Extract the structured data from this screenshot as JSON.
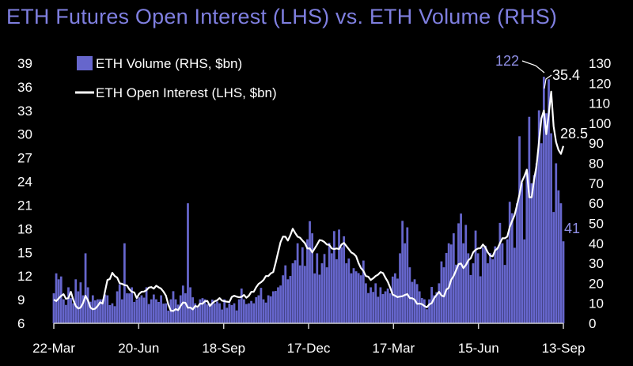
{
  "chart_data": {
    "type": "bar+line",
    "title": "ETH Futures Open Interest (LHS) vs. ETH Volume (RHS)",
    "x_tick_labels": [
      "22-Mar",
      "20-Jun",
      "18-Sep",
      "17-Dec",
      "17-Mar",
      "15-Jun",
      "13-Sep"
    ],
    "left_axis": {
      "min": 6,
      "max": 39,
      "ticks": [
        39,
        36,
        33,
        30,
        27,
        24,
        21,
        18,
        15,
        12,
        9,
        6
      ]
    },
    "right_axis": {
      "min": 0,
      "max": 130,
      "ticks": [
        130,
        120,
        110,
        100,
        90,
        80,
        70,
        60,
        50,
        40,
        30,
        20,
        10,
        0
      ]
    },
    "colors": {
      "volume": "#6666cc",
      "open_interest": "#ffffff",
      "title": "#7f7fe0",
      "annotation": "#8f8fe6"
    },
    "series": [
      {
        "name": "ETH Volume (RHS, $bn)",
        "type": "bar",
        "axis": "right",
        "anchors": [
          [
            0,
            15
          ],
          [
            2,
            22
          ],
          [
            4,
            12
          ],
          [
            6,
            18
          ],
          [
            8,
            10
          ],
          [
            9,
            22
          ],
          [
            10,
            16
          ],
          [
            12,
            14
          ],
          [
            13,
            35
          ],
          [
            14,
            18
          ],
          [
            16,
            14
          ],
          [
            18,
            12
          ],
          [
            20,
            12
          ],
          [
            22,
            14
          ],
          [
            24,
            10
          ],
          [
            26,
            16
          ],
          [
            28,
            12
          ],
          [
            29,
            40
          ],
          [
            30,
            15
          ],
          [
            32,
            18
          ],
          [
            34,
            12
          ],
          [
            36,
            14
          ],
          [
            38,
            18
          ],
          [
            40,
            12
          ],
          [
            42,
            12
          ],
          [
            44,
            14
          ],
          [
            46,
            10
          ],
          [
            48,
            12
          ],
          [
            50,
            12
          ],
          [
            52,
            14
          ],
          [
            54,
            15
          ],
          [
            55,
            60
          ],
          [
            56,
            18
          ],
          [
            58,
            10
          ],
          [
            60,
            12
          ],
          [
            62,
            12
          ],
          [
            64,
            10
          ],
          [
            66,
            10
          ],
          [
            68,
            10
          ],
          [
            70,
            12
          ],
          [
            72,
            10
          ],
          [
            74,
            10
          ],
          [
            76,
            12
          ],
          [
            78,
            12
          ],
          [
            80,
            10
          ],
          [
            82,
            10
          ],
          [
            84,
            14
          ],
          [
            86,
            12
          ],
          [
            88,
            14
          ],
          [
            90,
            16
          ],
          [
            92,
            18
          ],
          [
            94,
            24
          ],
          [
            96,
            22
          ],
          [
            98,
            30
          ],
          [
            100,
            40
          ],
          [
            102,
            38
          ],
          [
            104,
            42
          ],
          [
            106,
            45
          ],
          [
            108,
            35
          ],
          [
            110,
            30
          ],
          [
            112,
            28
          ],
          [
            114,
            35
          ],
          [
            116,
            32
          ],
          [
            118,
            38
          ],
          [
            120,
            30
          ],
          [
            122,
            25
          ],
          [
            124,
            26
          ],
          [
            126,
            24
          ],
          [
            128,
            20
          ],
          [
            130,
            18
          ],
          [
            132,
            20
          ],
          [
            134,
            18
          ],
          [
            136,
            16
          ],
          [
            138,
            15
          ],
          [
            140,
            25
          ],
          [
            142,
            35
          ],
          [
            144,
            40
          ],
          [
            146,
            28
          ],
          [
            148,
            22
          ],
          [
            150,
            16
          ],
          [
            152,
            12
          ],
          [
            154,
            12
          ],
          [
            156,
            14
          ],
          [
            158,
            20
          ],
          [
            160,
            28
          ],
          [
            162,
            40
          ],
          [
            164,
            45
          ],
          [
            166,
            50
          ],
          [
            168,
            40
          ],
          [
            170,
            35
          ],
          [
            172,
            30
          ],
          [
            174,
            35
          ],
          [
            176,
            38
          ],
          [
            178,
            30
          ],
          [
            180,
            32
          ],
          [
            182,
            38
          ],
          [
            184,
            40
          ],
          [
            186,
            42
          ],
          [
            188,
            55
          ],
          [
            190,
            60
          ],
          [
            192,
            70
          ],
          [
            194,
            75
          ],
          [
            196,
            70
          ],
          [
            198,
            80
          ],
          [
            200,
            90
          ],
          [
            202,
            105
          ],
          [
            203,
            122
          ],
          [
            204,
            95
          ],
          [
            206,
            80
          ],
          [
            208,
            60
          ],
          [
            209,
            41
          ]
        ],
        "last_value": 41,
        "peak_value": 122
      },
      {
        "name": "ETH Open Interest (LHS, $bn)",
        "type": "line",
        "axis": "left",
        "anchors": [
          [
            0,
            9.0
          ],
          [
            4,
            9.7
          ],
          [
            6,
            9.2
          ],
          [
            7,
            10.0
          ],
          [
            9,
            8.2
          ],
          [
            11,
            8.0
          ],
          [
            13,
            9.5
          ],
          [
            15,
            8.0
          ],
          [
            18,
            8.2
          ],
          [
            20,
            8.5
          ],
          [
            22,
            11.5
          ],
          [
            24,
            12.4
          ],
          [
            26,
            11.8
          ],
          [
            28,
            11.0
          ],
          [
            30,
            10.8
          ],
          [
            32,
            10.0
          ],
          [
            34,
            9.2
          ],
          [
            36,
            10.0
          ],
          [
            38,
            10.2
          ],
          [
            40,
            10.6
          ],
          [
            44,
            10.4
          ],
          [
            46,
            9.5
          ],
          [
            48,
            7.6
          ],
          [
            50,
            7.8
          ],
          [
            52,
            8.2
          ],
          [
            54,
            8.6
          ],
          [
            56,
            8.0
          ],
          [
            58,
            8.2
          ],
          [
            60,
            8.5
          ],
          [
            62,
            8.8
          ],
          [
            64,
            8.2
          ],
          [
            66,
            8.8
          ],
          [
            68,
            9.2
          ],
          [
            70,
            8.8
          ],
          [
            72,
            8.7
          ],
          [
            74,
            9.5
          ],
          [
            76,
            9.3
          ],
          [
            78,
            9.6
          ],
          [
            80,
            9.5
          ],
          [
            82,
            10.0
          ],
          [
            84,
            11.0
          ],
          [
            86,
            11.5
          ],
          [
            88,
            12.0
          ],
          [
            90,
            12.5
          ],
          [
            92,
            15.0
          ],
          [
            94,
            17.0
          ],
          [
            96,
            16.5
          ],
          [
            98,
            18.0
          ],
          [
            100,
            17.0
          ],
          [
            102,
            16.5
          ],
          [
            104,
            15.5
          ],
          [
            106,
            15.0
          ],
          [
            108,
            16.0
          ],
          [
            110,
            16.5
          ],
          [
            112,
            16.0
          ],
          [
            114,
            15.5
          ],
          [
            116,
            15.5
          ],
          [
            118,
            16.0
          ],
          [
            120,
            15.8
          ],
          [
            122,
            15.0
          ],
          [
            124,
            14.5
          ],
          [
            126,
            13.0
          ],
          [
            128,
            12.0
          ],
          [
            130,
            11.5
          ],
          [
            132,
            12.0
          ],
          [
            134,
            12.5
          ],
          [
            136,
            11.8
          ],
          [
            138,
            10.5
          ],
          [
            140,
            9.5
          ],
          [
            142,
            9.4
          ],
          [
            144,
            9.6
          ],
          [
            146,
            9.2
          ],
          [
            148,
            9.0
          ],
          [
            150,
            8.5
          ],
          [
            152,
            8.2
          ],
          [
            154,
            8.4
          ],
          [
            156,
            9.2
          ],
          [
            158,
            10.0
          ],
          [
            160,
            9.4
          ],
          [
            162,
            10.5
          ],
          [
            164,
            12.0
          ],
          [
            166,
            13.5
          ],
          [
            168,
            13.0
          ],
          [
            170,
            14.0
          ],
          [
            172,
            15.0
          ],
          [
            174,
            15.5
          ],
          [
            176,
            16.0
          ],
          [
            178,
            15.0
          ],
          [
            180,
            14.5
          ],
          [
            182,
            15.5
          ],
          [
            184,
            16.8
          ],
          [
            186,
            17.0
          ],
          [
            188,
            19.0
          ],
          [
            190,
            21.0
          ],
          [
            192,
            24.0
          ],
          [
            194,
            25.5
          ],
          [
            195,
            22.0
          ],
          [
            196,
            22.0
          ],
          [
            198,
            26.0
          ],
          [
            200,
            32.0
          ],
          [
            201,
            33.0
          ],
          [
            202,
            30.0
          ],
          [
            203,
            32.5
          ],
          [
            204,
            35.4
          ],
          [
            205,
            31.0
          ],
          [
            206,
            29.0
          ],
          [
            207,
            28.0
          ],
          [
            208,
            27.5
          ],
          [
            209,
            28.5
          ]
        ],
        "last_value": 28.5,
        "peak_value": 35.4
      }
    ],
    "legend": {
      "placement": "top-left",
      "entries": [
        "ETH Volume (RHS, $bn)",
        "ETH Open Interest (LHS, $bn)"
      ]
    },
    "annotations": {
      "volume_peak": "122",
      "oi_peak": "35.4",
      "oi_last": "28.5",
      "volume_last": "41"
    }
  }
}
